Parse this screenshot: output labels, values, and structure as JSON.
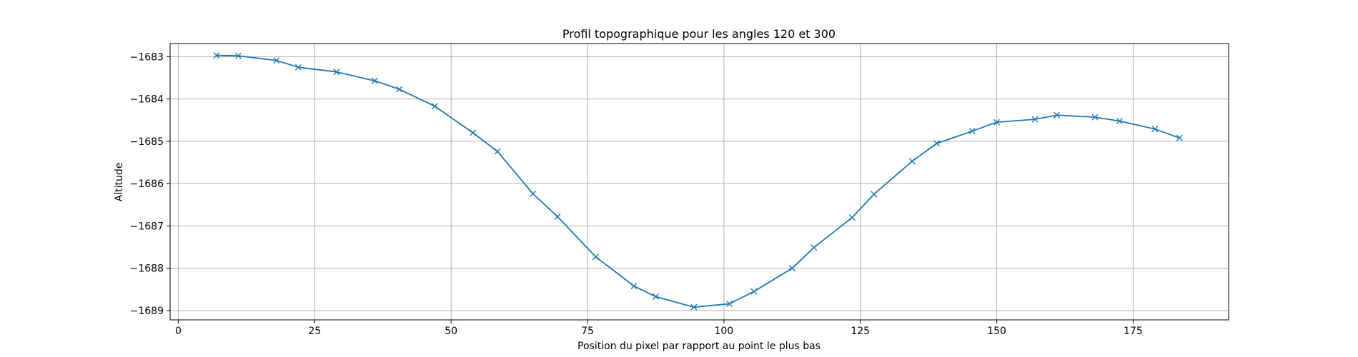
{
  "chart_data": {
    "type": "line",
    "title": "Profil topographique pour les angles 120 et 300",
    "xlabel": "Position du pixel par rapport au point le plus bas",
    "ylabel": "Altitude",
    "xlim": [
      -1.5,
      192.5
    ],
    "ylim": [
      -1689.22,
      -1682.69
    ],
    "xticks": [
      0,
      25,
      50,
      75,
      100,
      125,
      150,
      175
    ],
    "yticks": [
      -1689,
      -1688,
      -1687,
      -1686,
      -1685,
      -1684,
      -1683
    ],
    "ytick_labels": [
      "−1689",
      "−1688",
      "−1687",
      "−1686",
      "−1685",
      "−1684",
      "−1683"
    ],
    "grid": true,
    "marker": "x",
    "series": [
      {
        "x": [
          7,
          11,
          18,
          22,
          29,
          36,
          40.5,
          47,
          54,
          58.5,
          65,
          69.5,
          76.5,
          83.5,
          87.5,
          94.5,
          101,
          105.5,
          112.5,
          116.5,
          123.5,
          127.5,
          134.5,
          139,
          145.5,
          150,
          157,
          161,
          168,
          172.5,
          179,
          183.5
        ],
        "y": [
          -1682.97,
          -1682.98,
          -1683.09,
          -1683.25,
          -1683.36,
          -1683.57,
          -1683.77,
          -1684.17,
          -1684.8,
          -1685.24,
          -1686.24,
          -1686.78,
          -1687.73,
          -1688.42,
          -1688.67,
          -1688.92,
          -1688.84,
          -1688.55,
          -1688.0,
          -1687.51,
          -1686.8,
          -1686.25,
          -1685.47,
          -1685.05,
          -1684.76,
          -1684.55,
          -1684.48,
          -1684.38,
          -1684.43,
          -1684.52,
          -1684.71,
          -1684.92
        ]
      }
    ],
    "colors": {
      "line": "#1f77b4",
      "grid": "#b0b0b0",
      "axes": "#000000"
    }
  }
}
